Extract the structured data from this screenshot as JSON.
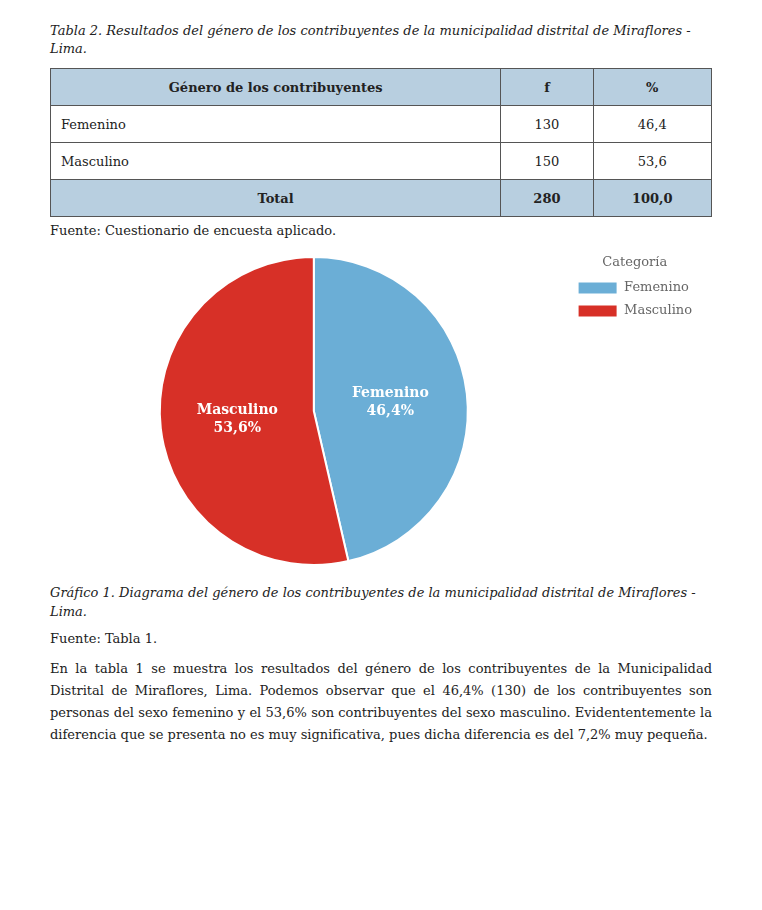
{
  "chart_data": {
    "type": "pie",
    "title": "Gráfico 1. Diagrama del género de los contribuyentes de la municipalidad distrital de Miraflores - Lima.",
    "categories": [
      "Femenino",
      "Masculino"
    ],
    "values": [
      46.4,
      53.6
    ],
    "value_labels": [
      "46,4%",
      "53,6%"
    ],
    "colors": [
      "#6baed6",
      "#d73027"
    ],
    "data_labels": true,
    "legend": "upper right",
    "legend_title": "Categoría",
    "source": "Fuente: Tabla 1.",
    "table": {
      "title": "Tabla 2. Resultados del género de los contribuyentes de la municipalidad distrital de Miraflores - Lima.",
      "header": [
        "Género de los contribuyentes",
        "f",
        "%"
      ],
      "rows": [
        [
          "Femenino",
          "130",
          "46,4"
        ],
        [
          "Masculino",
          "150",
          "53,6"
        ]
      ],
      "total": [
        "Total",
        "280",
        "100,0"
      ],
      "source": "Fuente: Cuestionario de encuesta aplicado."
    },
    "body": "En la tabla 1 se muestra los resultados del género de los contribuyentes de la Municipalidad Distrital de Miraflores, Lima. Podemos observar que el 46,4% (130) de los contribuyentes son personas del sexo femenino y el 53,6% son contribuyentes del sexo masculino. Evidententemente la diferencia que se presenta no es muy significativa, pues dicha diferencia es del 7,2% muy pequeña."
  }
}
